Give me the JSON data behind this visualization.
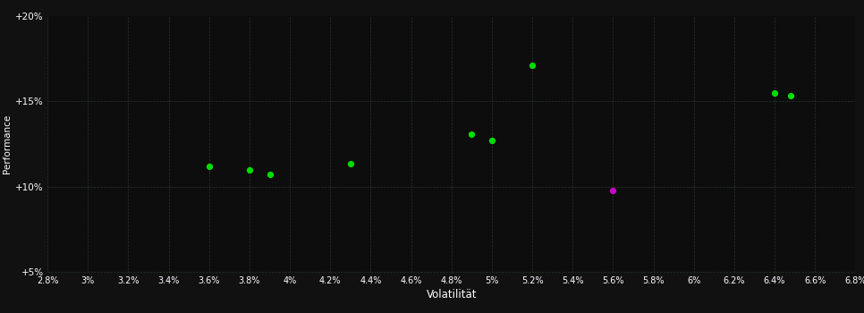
{
  "background_color": "#111111",
  "plot_bg_color": "#0d0d0d",
  "grid_color": "#2a3a2a",
  "dot_color_green": "#00dd00",
  "dot_color_purple": "#cc00cc",
  "xlabel": "Volatilität",
  "ylabel": "Performance",
  "xlim": [
    0.028,
    0.068
  ],
  "ylim": [
    0.05,
    0.2
  ],
  "xticks": [
    0.028,
    0.03,
    0.032,
    0.034,
    0.036,
    0.038,
    0.04,
    0.042,
    0.044,
    0.046,
    0.048,
    0.05,
    0.052,
    0.054,
    0.056,
    0.058,
    0.06,
    0.062,
    0.064,
    0.066,
    0.068
  ],
  "yticks": [
    0.05,
    0.1,
    0.15,
    0.2
  ],
  "green_points": [
    [
      0.036,
      0.112
    ],
    [
      0.038,
      0.11
    ],
    [
      0.039,
      0.107
    ],
    [
      0.043,
      0.1135
    ],
    [
      0.049,
      0.131
    ],
    [
      0.05,
      0.127
    ],
    [
      0.052,
      0.171
    ],
    [
      0.064,
      0.155
    ],
    [
      0.0648,
      0.153
    ]
  ],
  "purple_points": [
    [
      0.056,
      0.098
    ]
  ]
}
